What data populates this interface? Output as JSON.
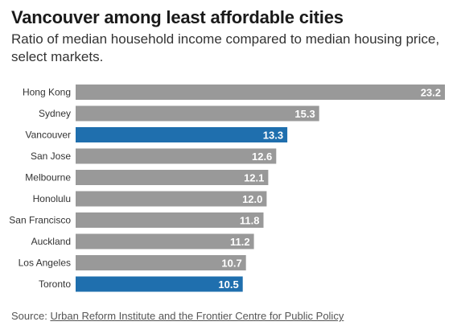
{
  "title": "Vancouver among least affordable cities",
  "subtitle": "Ratio of median household income compared to median housing price, select markets.",
  "source": {
    "label": "Source:",
    "link_text": "Urban Reform Institute and the Frontier Centre for Public Policy"
  },
  "colors": {
    "default_bar": "#999999",
    "highlight_bar": "#1f6fae",
    "value_text": "#ffffff"
  },
  "chart_data": {
    "type": "bar",
    "orientation": "horizontal",
    "categories": [
      "Hong Kong",
      "Sydney",
      "Vancouver",
      "San Jose",
      "Melbourne",
      "Honolulu",
      "San Francisco",
      "Auckland",
      "Los Angeles",
      "Toronto"
    ],
    "values": [
      23.2,
      15.3,
      13.3,
      12.6,
      12.1,
      12.0,
      11.8,
      11.2,
      10.7,
      10.5
    ],
    "value_labels": [
      "23.2",
      "15.3",
      "13.3",
      "12.6",
      "12.1",
      "12.0",
      "11.8",
      "11.2",
      "10.7",
      "10.5"
    ],
    "highlighted": [
      "Vancouver",
      "Toronto"
    ],
    "title": "Vancouver among least affordable cities",
    "xlabel": "",
    "ylabel": "",
    "xlim": [
      0,
      23.2
    ],
    "grid": false,
    "legend": "none"
  }
}
